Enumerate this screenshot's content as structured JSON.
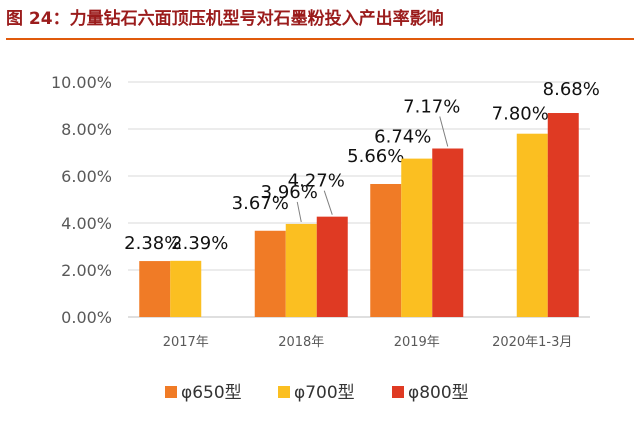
{
  "figure": {
    "title": "图 24：力量钻石六面顶压机型号对石墨粉投入产出率影响"
  },
  "colors": {
    "title": "#9b1c1c",
    "rule": "#e05a0c",
    "grid": "#d9d9d9",
    "axis": "#bfbfbf"
  },
  "chart_data": {
    "type": "bar",
    "categories": [
      "2017年",
      "2018年",
      "2019年",
      "2020年1-3月"
    ],
    "series": [
      {
        "name": "φ650型",
        "color": "#f07b26",
        "values": [
          2.38,
          3.67,
          5.66,
          null
        ],
        "labels": [
          "2.38%",
          "3.67%",
          "5.66%",
          null
        ]
      },
      {
        "name": "φ700型",
        "color": "#fbbf21",
        "values": [
          2.39,
          3.96,
          6.74,
          7.8
        ],
        "labels": [
          "2.39%",
          "3.96%",
          "6.74%",
          "7.80%"
        ]
      },
      {
        "name": "φ800型",
        "color": "#df3a23",
        "values": [
          null,
          4.27,
          7.17,
          8.68
        ],
        "labels": [
          null,
          "4.27%",
          "7.17%",
          "8.68%"
        ]
      }
    ],
    "ylim": [
      0,
      10
    ],
    "yticks": [
      0,
      2,
      4,
      6,
      8,
      10
    ],
    "ytick_labels": [
      "0.00%",
      "2.00%",
      "4.00%",
      "6.00%",
      "8.00%",
      "10.00%"
    ],
    "grid": true,
    "legend": "bottom"
  }
}
